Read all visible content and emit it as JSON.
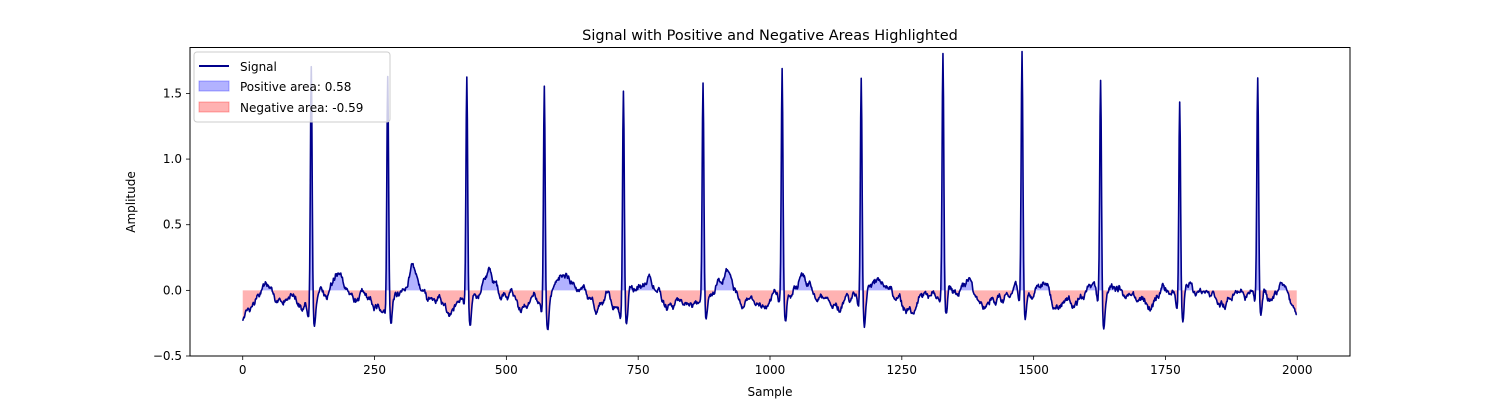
{
  "chart_data": {
    "type": "area",
    "title": "Signal with Positive and Negative Areas Highlighted",
    "xlabel": "Sample",
    "ylabel": "Amplitude",
    "xlim": [
      -100,
      2100
    ],
    "ylim": [
      -0.5,
      1.85
    ],
    "xticks": [
      0,
      250,
      500,
      750,
      1000,
      1250,
      1500,
      1750,
      2000
    ],
    "xtick_labels": [
      "0",
      "250",
      "500",
      "750",
      "1000",
      "1250",
      "1500",
      "1750",
      "2000"
    ],
    "yticks": [
      -0.5,
      0.0,
      0.5,
      1.0,
      1.5
    ],
    "ytick_labels": [
      "−0.5",
      "0.0",
      "0.5",
      "1.0",
      "1.5"
    ],
    "grid": false,
    "legend_position": "top-left",
    "colors": {
      "signal": "#00008b",
      "positive_fill": "#0000ff",
      "negative_fill": "#ff0000"
    },
    "series": [
      {
        "name": "Signal",
        "kind": "line"
      },
      {
        "name": "Positive area: 0.58",
        "kind": "fill",
        "sign": "positive"
      },
      {
        "name": "Negative area: -0.59",
        "kind": "fill",
        "sign": "negative"
      }
    ],
    "peaks": [
      {
        "x": 130,
        "y": 1.73
      },
      {
        "x": 275,
        "y": 1.66
      },
      {
        "x": 425,
        "y": 1.66
      },
      {
        "x": 572,
        "y": 1.62
      },
      {
        "x": 722,
        "y": 1.57
      },
      {
        "x": 873,
        "y": 1.6
      },
      {
        "x": 1023,
        "y": 1.64
      },
      {
        "x": 1173,
        "y": 1.65
      },
      {
        "x": 1328,
        "y": 1.75
      },
      {
        "x": 1478,
        "y": 1.76
      },
      {
        "x": 1627,
        "y": 1.58
      },
      {
        "x": 1777,
        "y": 1.45
      },
      {
        "x": 1925,
        "y": 1.58
      }
    ],
    "sample_count": 2000
  }
}
